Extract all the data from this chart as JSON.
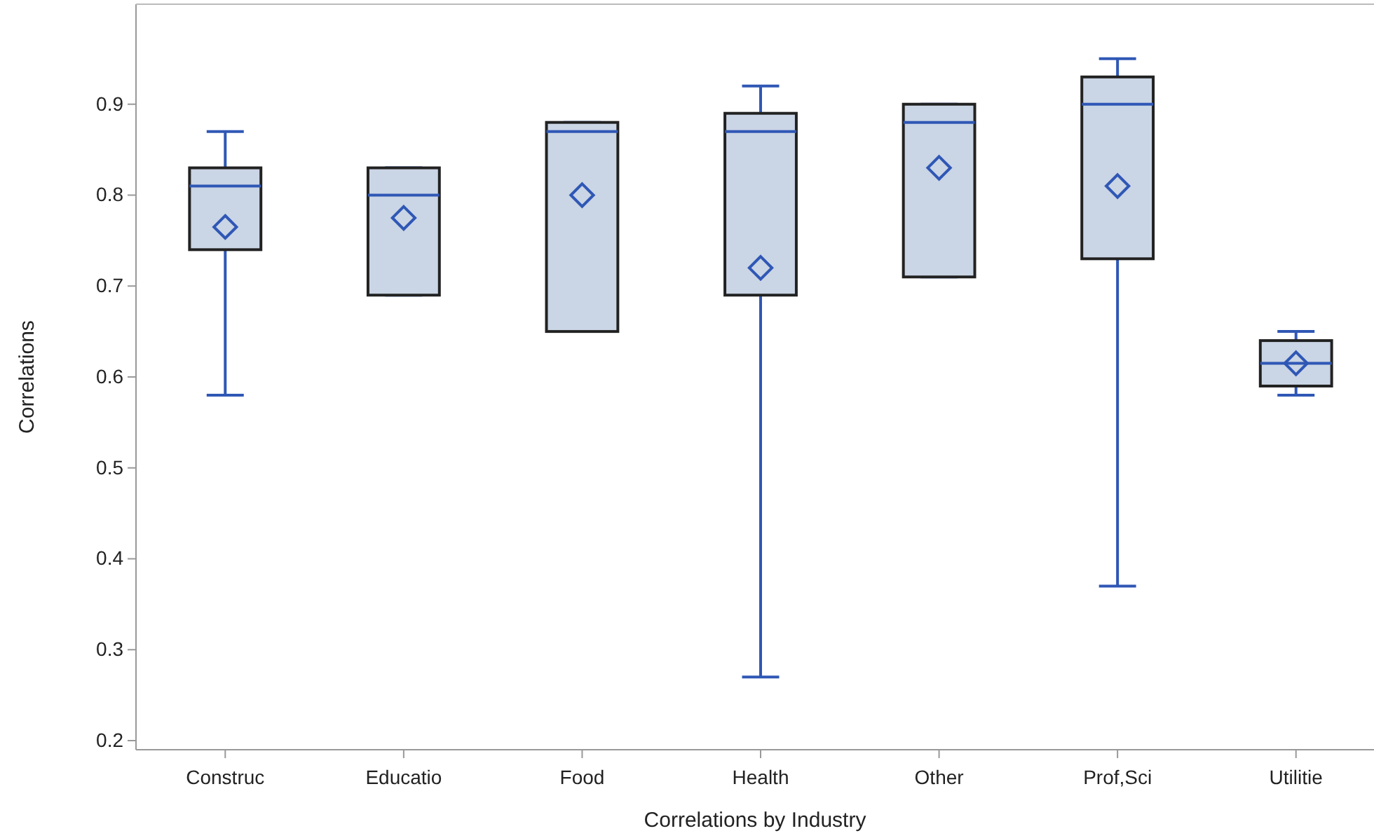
{
  "chart_data": {
    "type": "box",
    "xlabel": "Correlations by Industry",
    "ylabel": "Correlations",
    "categories": [
      "Construc",
      "Educatio",
      "Food",
      "Health",
      "Other",
      "Prof,Sci",
      "Utilitie"
    ],
    "boxes": [
      {
        "low": 0.58,
        "q1": 0.74,
        "median": 0.81,
        "q3": 0.83,
        "high": 0.87,
        "mean": 0.765
      },
      {
        "low": 0.69,
        "q1": 0.69,
        "median": 0.8,
        "q3": 0.83,
        "high": 0.83,
        "mean": 0.775
      },
      {
        "low": 0.65,
        "q1": 0.65,
        "median": 0.87,
        "q3": 0.88,
        "high": 0.88,
        "mean": 0.8
      },
      {
        "low": 0.27,
        "q1": 0.69,
        "median": 0.87,
        "q3": 0.89,
        "high": 0.92,
        "mean": 0.72
      },
      {
        "low": 0.71,
        "q1": 0.71,
        "median": 0.88,
        "q3": 0.9,
        "high": 0.9,
        "mean": 0.83
      },
      {
        "low": 0.37,
        "q1": 0.73,
        "median": 0.9,
        "q3": 0.93,
        "high": 0.95,
        "mean": 0.81
      },
      {
        "low": 0.58,
        "q1": 0.59,
        "median": 0.615,
        "q3": 0.64,
        "high": 0.65,
        "mean": 0.615
      }
    ],
    "color": "#cad5e5",
    "ylim": [
      0.19,
      1.01
    ],
    "yticks": [
      0.2,
      0.3,
      0.4,
      0.5,
      0.6,
      0.7,
      0.8,
      0.9
    ],
    "grid": false,
    "marker": "diamond"
  }
}
